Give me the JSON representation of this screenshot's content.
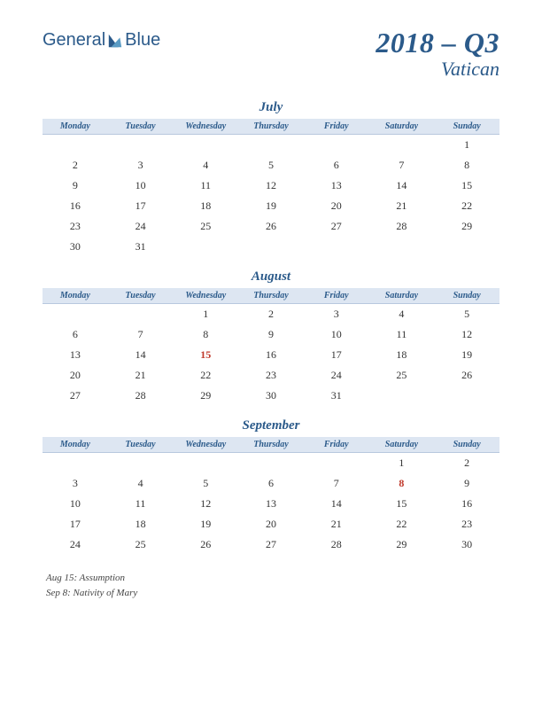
{
  "logo": {
    "text_a": "General",
    "text_b": "Blue"
  },
  "title": {
    "quarter": "2018 – Q3",
    "region": "Vatican"
  },
  "day_headers": [
    "Monday",
    "Tuesday",
    "Wednesday",
    "Thursday",
    "Friday",
    "Saturday",
    "Sunday"
  ],
  "months": [
    {
      "name": "July",
      "lead": 6,
      "days": 31,
      "holidays": []
    },
    {
      "name": "August",
      "lead": 2,
      "days": 31,
      "holidays": [
        15
      ]
    },
    {
      "name": "September",
      "lead": 5,
      "days": 30,
      "holidays": [
        8
      ]
    }
  ],
  "holidays_text": [
    "Aug 15: Assumption",
    "Sep 8: Nativity of Mary"
  ],
  "colors": {
    "brand": "#2b5a8a",
    "header_bg": "#dde6f2",
    "holiday": "#c0392b",
    "text": "#333333"
  }
}
